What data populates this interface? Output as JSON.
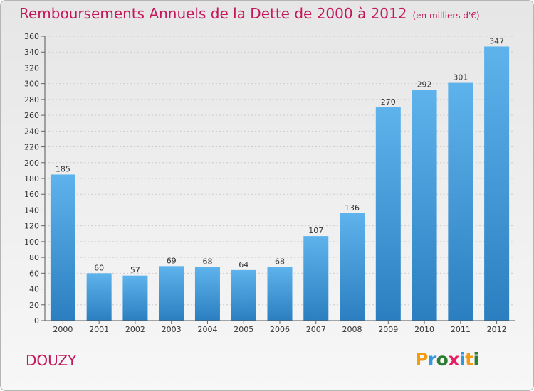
{
  "header": {
    "title": "Remboursements Annuels de la Dette de 2000 à 2012",
    "subtitle": "(en milliers d'€)"
  },
  "footer": {
    "commune": "DOUZY",
    "logo_text": "Proxiti",
    "logo_colors": [
      "#f39c12",
      "#3498db",
      "#2e7d32",
      "#e91e63",
      "#3498db",
      "#f39c12",
      "#2e7d32"
    ]
  },
  "colors": {
    "title": "#c2185b",
    "bar_top": "#5eb3ec",
    "bar_bottom": "#2b7fc0",
    "grid": "#cccccc"
  },
  "chart_data": {
    "type": "bar",
    "title": "Remboursements Annuels de la Dette de 2000 à 2012",
    "xlabel": "",
    "ylabel": "",
    "categories": [
      "2000",
      "2001",
      "2002",
      "2003",
      "2004",
      "2005",
      "2006",
      "2007",
      "2008",
      "2009",
      "2010",
      "2011",
      "2012"
    ],
    "values": [
      185,
      60,
      57,
      69,
      68,
      64,
      68,
      107,
      136,
      270,
      292,
      301,
      347
    ],
    "ylim": [
      0,
      360
    ],
    "yticks": [
      0,
      20,
      40,
      60,
      80,
      100,
      120,
      140,
      160,
      180,
      200,
      220,
      240,
      260,
      280,
      300,
      320,
      340,
      360
    ],
    "grid": true,
    "legend": "none"
  }
}
